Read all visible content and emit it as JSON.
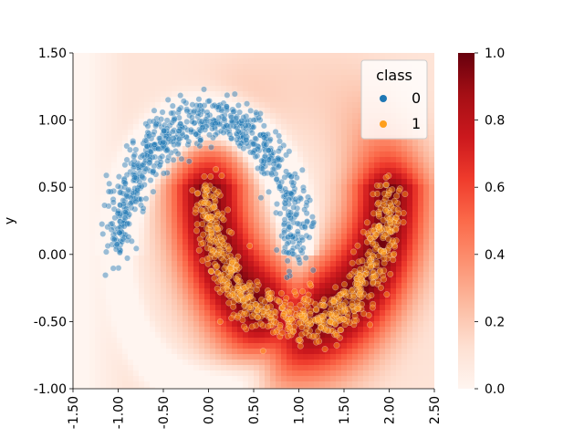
{
  "chart_data": {
    "type": "scatter",
    "title": "",
    "xlabel": "",
    "ylabel": "y",
    "xlim": [
      -1.5,
      2.5
    ],
    "ylim": [
      -1.0,
      1.5
    ],
    "x_ticks": [
      "-1.50",
      "-1.00",
      "-0.50",
      "0.00",
      "0.50",
      "1.00",
      "1.50",
      "2.00",
      "2.50"
    ],
    "y_ticks": [
      "1.50",
      "1.00",
      "0.50",
      "0.00",
      "-0.50",
      "-1.00"
    ],
    "background": "heatmap of predicted probability of class 1 (Reds colormap)",
    "colorbar": {
      "ticks": [
        "0.0",
        "0.2",
        "0.4",
        "0.6",
        "0.8",
        "1.0"
      ],
      "range": [
        0.0,
        1.0
      ],
      "colormap": "Reds"
    },
    "legend": {
      "title": "class",
      "placement": "top-right",
      "entries": [
        {
          "label": "0",
          "color": "#1f77b4"
        },
        {
          "label": "1",
          "color": "#ff9f1c"
        }
      ]
    },
    "series": [
      {
        "name": "0",
        "color": "#1f77b4",
        "shape": "upper half-moon, centered (0,0), radius 1",
        "x_range": [
          -1.3,
          1.2
        ],
        "y_range": [
          -0.2,
          1.2
        ]
      },
      {
        "name": "1",
        "color": "#ff9f1c",
        "shape": "lower half-moon, centered (1,0.5), radius 1",
        "x_range": [
          -0.1,
          2.3
        ],
        "y_range": [
          -0.7,
          0.6
        ]
      }
    ]
  }
}
